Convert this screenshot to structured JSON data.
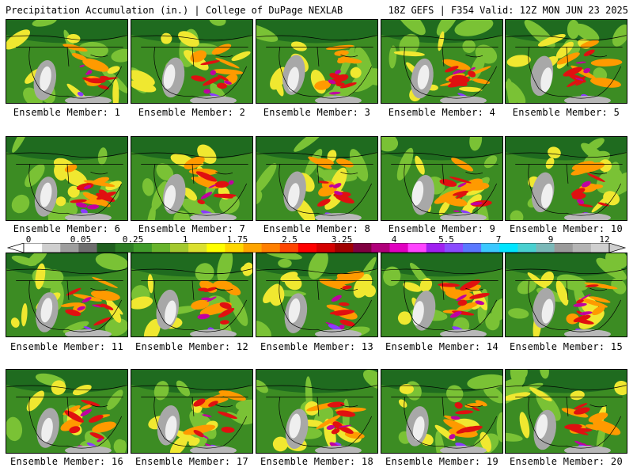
{
  "header": {
    "left": "Precipitation Accumulation (in.) | College of DuPage NEXLAB",
    "right": "18Z GEFS | F354 Valid: 12Z MON JUN 23 2025"
  },
  "colorbar": {
    "tick_labels": [
      "0",
      "0.05",
      "0.25",
      "1",
      "1.75",
      "2.5",
      "3.25",
      "4",
      "5.5",
      "7",
      "9",
      "12"
    ],
    "colors": [
      "#ffffff",
      "#cfcfcf",
      "#9e9e9e",
      "#6e6e6e",
      "#1f5f1f",
      "#2d7d25",
      "#3f9b2a",
      "#68b42c",
      "#a3c92e",
      "#dbe02f",
      "#ffff00",
      "#ffd700",
      "#ffa500",
      "#ff7f00",
      "#ff4500",
      "#ff0000",
      "#d40000",
      "#a00000",
      "#800040",
      "#b0007a",
      "#e000c0",
      "#ff44ff",
      "#a020f0",
      "#8a4bff",
      "#5a78ff",
      "#3cc8ff",
      "#00e5ff",
      "#49d0d0",
      "#7ab8b8",
      "#9a9a9a",
      "#b4b4b4",
      "#cfcfcf"
    ]
  },
  "map_colors": {
    "base_green": "#3c8c23",
    "dark_green": "#1f6b1f",
    "light_green": "#7ac235",
    "yellow": "#f0e830",
    "orange": "#ff9a00",
    "red": "#e01010",
    "magenta": "#c000a0",
    "purple": "#8a3bff",
    "gray": "#a8a8a8",
    "white": "#efefef"
  },
  "members": [
    {
      "label": "Ensemble Member: 1"
    },
    {
      "label": "Ensemble Member: 2"
    },
    {
      "label": "Ensemble Member: 3"
    },
    {
      "label": "Ensemble Member: 4"
    },
    {
      "label": "Ensemble Member: 5"
    },
    {
      "label": "Ensemble Member: 6"
    },
    {
      "label": "Ensemble Member: 7"
    },
    {
      "label": "Ensemble Member: 8"
    },
    {
      "label": "Ensemble Member: 9"
    },
    {
      "label": "Ensemble Member: 10"
    },
    {
      "label": "Ensemble Member: 11"
    },
    {
      "label": "Ensemble Member: 12"
    },
    {
      "label": "Ensemble Member: 13"
    },
    {
      "label": "Ensemble Member: 14"
    },
    {
      "label": "Ensemble Member: 15"
    },
    {
      "label": "Ensemble Member: 16"
    },
    {
      "label": "Ensemble Member: 17"
    },
    {
      "label": "Ensemble Member: 18"
    },
    {
      "label": "Ensemble Member: 19"
    },
    {
      "label": "Ensemble Member: 20"
    }
  ]
}
